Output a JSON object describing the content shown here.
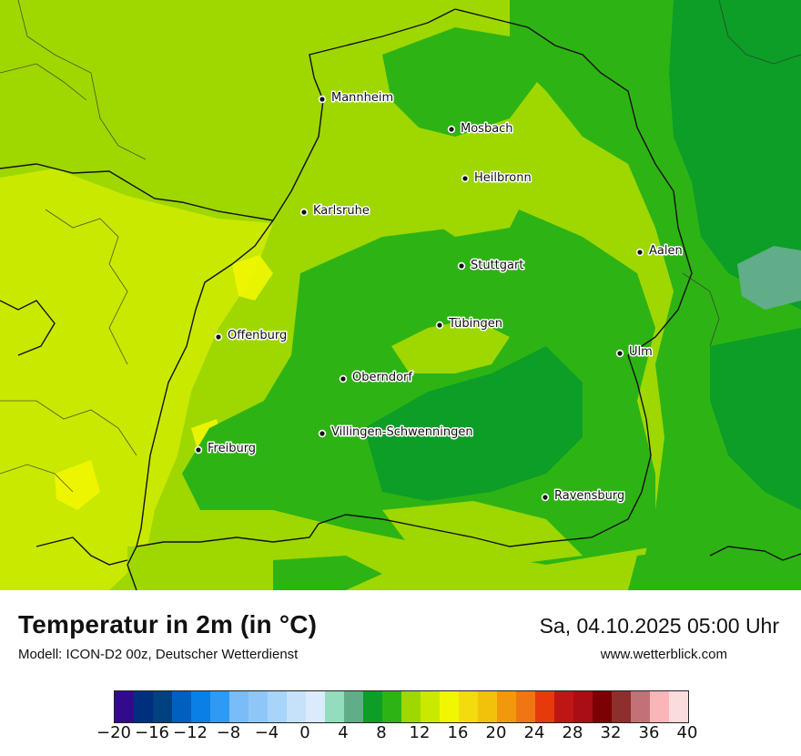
{
  "title": "Temperatur in 2m (in °C)",
  "model": "Modell: ICON-D2 00z, Deutscher Wetterdienst",
  "datetime": "Sa, 04.10.2025 05:00 Uhr",
  "website": "www.wetterblick.com",
  "map": {
    "cities": [
      {
        "name": "Mannheim"
      },
      {
        "name": "Mosbach"
      },
      {
        "name": "Heilbronn"
      },
      {
        "name": "Karlsruhe"
      },
      {
        "name": "Aalen"
      },
      {
        "name": "Stuttgart"
      },
      {
        "name": "Offenburg"
      },
      {
        "name": "Tübingen"
      },
      {
        "name": "Ulm"
      },
      {
        "name": "Oberndorf"
      },
      {
        "name": "Villingen-Schwenningen"
      },
      {
        "name": "Freiburg"
      },
      {
        "name": "Ravensburg"
      }
    ]
  },
  "legend": {
    "unit": "°C",
    "min": -20,
    "max": 40,
    "step": 2,
    "tick_labels": [
      "−20",
      "−16",
      "−12",
      "−8",
      "−4",
      "0",
      "4",
      "8",
      "12",
      "16",
      "20",
      "24",
      "28",
      "32",
      "36",
      "40"
    ],
    "colors": [
      "#340a8c",
      "#002f7e",
      "#00427f",
      "#0060bf",
      "#0a80e6",
      "#2e9af4",
      "#7abcf7",
      "#8ec7f7",
      "#a8d4f9",
      "#c6e2fb",
      "#dbebfd",
      "#93dcbd",
      "#61ad89",
      "#0c9e26",
      "#2eb315",
      "#9ed800",
      "#c9e900",
      "#f1f700",
      "#f2dc0d",
      "#f2c20a",
      "#f2980c",
      "#ef7612",
      "#e63a0c",
      "#be1614",
      "#a90e15",
      "#7c0104",
      "#8e2f2d",
      "#c27276",
      "#fab5b8",
      "#fbdcdd"
    ]
  }
}
